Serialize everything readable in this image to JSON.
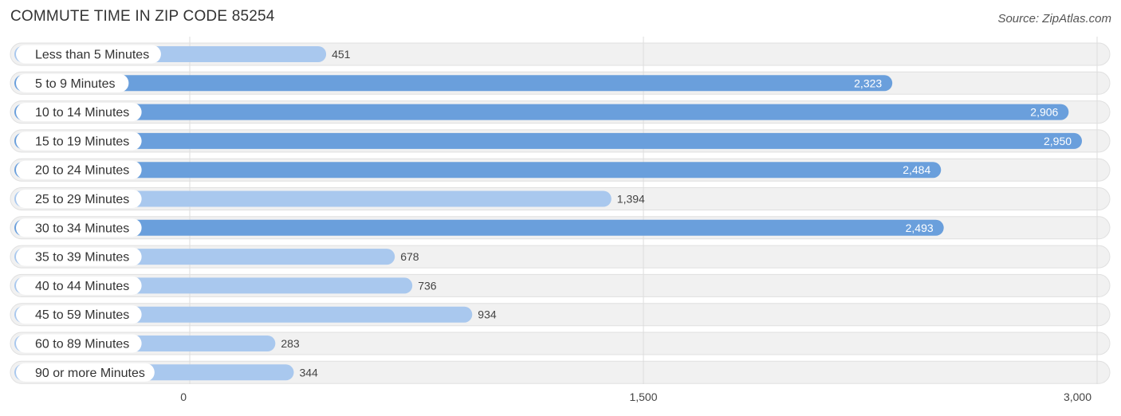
{
  "chart_data": {
    "type": "bar",
    "orientation": "horizontal",
    "title": "COMMUTE TIME IN ZIP CODE 85254",
    "source": "Source: ZipAtlas.com",
    "categories": [
      "Less than 5 Minutes",
      "5 to 9 Minutes",
      "10 to 14 Minutes",
      "15 to 19 Minutes",
      "20 to 24 Minutes",
      "25 to 29 Minutes",
      "30 to 34 Minutes",
      "35 to 39 Minutes",
      "40 to 44 Minutes",
      "45 to 59 Minutes",
      "60 to 89 Minutes",
      "90 or more Minutes"
    ],
    "values": [
      451,
      2323,
      2906,
      2950,
      2484,
      1394,
      2493,
      678,
      736,
      934,
      283,
      344
    ],
    "value_labels": [
      "451",
      "2,323",
      "2,906",
      "2,950",
      "2,484",
      "1,394",
      "2,493",
      "678",
      "736",
      "934",
      "283",
      "344"
    ],
    "xlim": [
      0,
      3000
    ],
    "xticks": [
      0,
      1500,
      3000
    ],
    "xtick_labels": [
      "0",
      "1,500",
      "3,000"
    ],
    "grid": true,
    "colors": {
      "bar_strong": "#6a9fdc",
      "bar_light": "#a9c8ee",
      "track": "#f1f1f1",
      "track_border": "#e0e0e0",
      "grid": "#dddddd",
      "label_inside": "#ffffff",
      "label_outside": "#444444"
    }
  }
}
